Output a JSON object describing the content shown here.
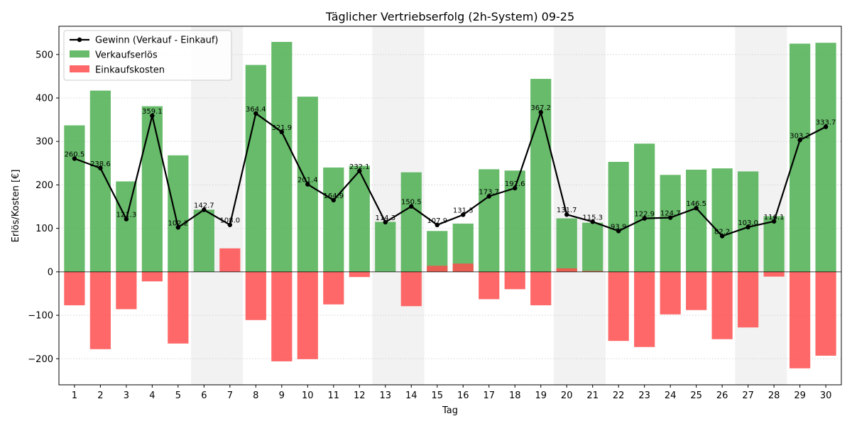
{
  "chart_data": {
    "type": "bar",
    "title": "Täglicher Vertriebserfolg (2h-System) 09-25",
    "xlabel": "Tag",
    "ylabel": "Erlös/Kosten [€]",
    "ylim": [
      -260,
      565
    ],
    "yticks": [
      -200,
      -100,
      0,
      100,
      200,
      300,
      400,
      500
    ],
    "grid": "horizontal, dotted",
    "legend_position": "top-left",
    "categories": [
      "1",
      "2",
      "3",
      "4",
      "5",
      "6",
      "7",
      "8",
      "9",
      "10",
      "11",
      "12",
      "13",
      "14",
      "15",
      "16",
      "17",
      "18",
      "19",
      "20",
      "21",
      "22",
      "23",
      "24",
      "25",
      "26",
      "27",
      "28",
      "29",
      "30"
    ],
    "weekend_days": [
      6,
      7,
      13,
      14,
      20,
      21,
      27,
      28
    ],
    "series": [
      {
        "name": "Gewinn (Verkauf - Einkauf)",
        "kind": "line",
        "color": "#000000",
        "values": [
          260.5,
          238.6,
          121.3,
          359.1,
          102.2,
          142.7,
          108.0,
          364.4,
          321.9,
          201.4,
          164.9,
          232.1,
          114.3,
          150.5,
          107.9,
          131.3,
          173.7,
          192.6,
          367.2,
          131.7,
          115.3,
          93.9,
          122.9,
          124.7,
          146.5,
          82.2,
          103.0,
          116.1,
          303.2,
          333.7
        ],
        "labels": [
          "260.5",
          "238.6",
          "121.3",
          "359.1",
          "102.2",
          "142.7",
          "108.0",
          "364.4",
          "321.9",
          "201.4",
          "164.9",
          "232.1",
          "114.3",
          "150.5",
          "107.9",
          "131.3",
          "173.7",
          "192.6",
          "367.2",
          "131.7",
          "115.3",
          "93.9",
          "122.9",
          "124.7",
          "146.5",
          "82.2",
          "103.0",
          "116.1",
          "303.2",
          "333.7"
        ]
      },
      {
        "name": "Verkaufserlös",
        "kind": "bar",
        "color": "#4caf50",
        "values": [
          337,
          417,
          208,
          381,
          268,
          143,
          0,
          476,
          529,
          403,
          240,
          244,
          115,
          229,
          94,
          111,
          236,
          233,
          444,
          123,
          113,
          253,
          295,
          223,
          235,
          238,
          231,
          128,
          525,
          527
        ]
      },
      {
        "name": "Einkaufskosten",
        "kind": "bar",
        "color": "#ff4d4d",
        "values": [
          -77,
          -178,
          -86,
          -22,
          -165,
          0,
          54,
          -111,
          -206,
          -201,
          -75,
          -12,
          0,
          -79,
          14,
          19,
          -63,
          -40,
          -77,
          8,
          2,
          -159,
          -173,
          -98,
          -88,
          -155,
          -128,
          -11,
          -222,
          -193
        ]
      }
    ]
  }
}
